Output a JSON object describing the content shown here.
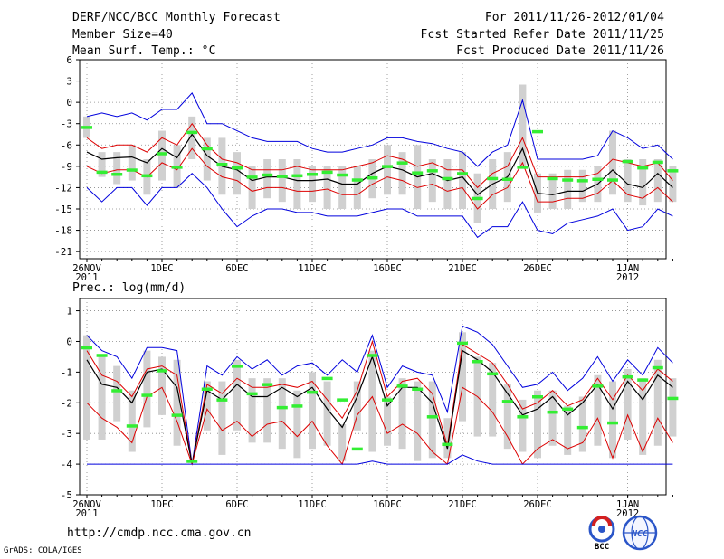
{
  "header": {
    "title": "DERF/NCC/BCC Monthly Forecast",
    "member_size": "Member Size=40",
    "variable": "Mean Surf. Temp.: °C",
    "period": "For 2011/11/26-2012/01/04",
    "fcst_started": "Fcst Started Refer Date 2011/11/25",
    "fcst_produced": "Fcst Produced Date 2011/11/26"
  },
  "footer": {
    "url": "http://cmdp.ncc.cma.gov.cn",
    "credit": "GrADS: COLA/IGES",
    "logos": [
      "BCC",
      "NCC"
    ]
  },
  "colors": {
    "max_min": "#0000dd",
    "spread": "#dd0000",
    "mean": "#000000",
    "box": "#d0d0d0",
    "observation": "#33ee33",
    "grid": "#888888"
  },
  "chart_data": [
    {
      "type": "box",
      "title": "Mean Surf. Temp.: °C",
      "xlabel": "",
      "ylabel": "",
      "ylim": [
        -22,
        6
      ],
      "yticks": [
        6,
        3,
        0,
        -3,
        -6,
        -9,
        -12,
        -15,
        -18,
        -21
      ],
      "x_tick_labels": [
        {
          "day": 0,
          "label": "26NOV",
          "year": "2011"
        },
        {
          "day": 5,
          "label": "1DEC"
        },
        {
          "day": 10,
          "label": "6DEC"
        },
        {
          "day": 15,
          "label": "11DEC"
        },
        {
          "day": 20,
          "label": "16DEC"
        },
        {
          "day": 25,
          "label": "21DEC"
        },
        {
          "day": 30,
          "label": "26DEC"
        },
        {
          "day": 36,
          "label": "1JAN",
          "year": "2012"
        }
      ],
      "days": 40,
      "series": [
        {
          "name": "Ensemble maximum",
          "values": [
            -2,
            -1.5,
            -2,
            -1.5,
            -2.5,
            -1,
            -1,
            1.3,
            -3,
            -3,
            -4,
            -5,
            -5.5,
            -5.5,
            -5.5,
            -6.5,
            -7,
            -7,
            -6.5,
            -6,
            -5,
            -5,
            -5.5,
            -5.8,
            -6.5,
            -7,
            -9,
            -7,
            -6,
            0.3,
            -8,
            -8,
            -8,
            -8,
            -7.5,
            -4,
            -5,
            -6.5,
            -6,
            -8
          ]
        },
        {
          "name": "Upper spread",
          "values": [
            -5,
            -6.5,
            -6,
            -6,
            -7,
            -5,
            -6,
            -3,
            -6,
            -8,
            -8.5,
            -9.5,
            -9.5,
            -9.5,
            -9,
            -9.5,
            -9.5,
            -9.5,
            -9,
            -8.5,
            -7.5,
            -8,
            -9,
            -8.5,
            -9.5,
            -9.5,
            -12,
            -10,
            -9,
            -5,
            -10.5,
            -10.5,
            -10.5,
            -10.5,
            -10,
            -8,
            -8.5,
            -9,
            -8.5,
            -11
          ]
        },
        {
          "name": "Ensemble mean",
          "values": [
            -7,
            -8,
            -7.8,
            -7.7,
            -8.5,
            -6.5,
            -7.8,
            -4.5,
            -7.5,
            -9,
            -9.5,
            -11,
            -10.5,
            -10.5,
            -11,
            -11,
            -10.8,
            -11.5,
            -11.5,
            -10,
            -9,
            -9.5,
            -10.5,
            -10,
            -11,
            -10.5,
            -13,
            -11.5,
            -10.5,
            -6.5,
            -12.8,
            -13,
            -12.5,
            -12.5,
            -11.5,
            -9.5,
            -11.5,
            -12,
            -10,
            -12
          ]
        },
        {
          "name": "Lower spread",
          "values": [
            -9,
            -10,
            -9.5,
            -9.5,
            -10.5,
            -8.5,
            -9.5,
            -6.5,
            -9,
            -10.5,
            -11,
            -12.5,
            -12,
            -12,
            -12.5,
            -12.5,
            -12.2,
            -13,
            -13,
            -11.5,
            -10.5,
            -11,
            -12,
            -11.5,
            -12.5,
            -12,
            -15,
            -13,
            -12,
            -8.5,
            -14,
            -14,
            -13.5,
            -13.5,
            -12.8,
            -11,
            -13,
            -13.5,
            -12,
            -14
          ]
        },
        {
          "name": "Ensemble minimum",
          "values": [
            -12,
            -14,
            -12,
            -12,
            -14.5,
            -12,
            -12,
            -10,
            -12,
            -15,
            -17.5,
            -16,
            -15,
            -15,
            -15.5,
            -15.5,
            -16,
            -16,
            -16,
            -15.5,
            -15,
            -15,
            -16,
            -16,
            -16,
            -16,
            -19,
            -17.5,
            -17.5,
            -14,
            -18,
            -18.5,
            -17,
            -16.5,
            -16,
            -15,
            -18,
            -17.5,
            -15,
            -16
          ]
        }
      ],
      "boxes": [
        {
          "day": 0,
          "low": -5,
          "high": -2
        },
        {
          "day": 1,
          "low": -10.5,
          "high": -7
        },
        {
          "day": 2,
          "low": -11.5,
          "high": -7
        },
        {
          "day": 3,
          "low": -11,
          "high": -6
        },
        {
          "day": 4,
          "low": -13,
          "high": -8
        },
        {
          "day": 5,
          "low": -11,
          "high": -4
        },
        {
          "day": 6,
          "low": -12,
          "high": -6
        },
        {
          "day": 7,
          "low": -8,
          "high": -2
        },
        {
          "day": 8,
          "low": -11,
          "high": -5
        },
        {
          "day": 9,
          "low": -13,
          "high": -5
        },
        {
          "day": 10,
          "low": -13,
          "high": -7
        },
        {
          "day": 11,
          "low": -15,
          "high": -9
        },
        {
          "day": 12,
          "low": -13.5,
          "high": -8
        },
        {
          "day": 13,
          "low": -14,
          "high": -8
        },
        {
          "day": 14,
          "low": -15,
          "high": -8
        },
        {
          "day": 15,
          "low": -14,
          "high": -9
        },
        {
          "day": 16,
          "low": -15,
          "high": -9
        },
        {
          "day": 17,
          "low": -15,
          "high": -9
        },
        {
          "day": 18,
          "low": -15,
          "high": -9
        },
        {
          "day": 19,
          "low": -13.5,
          "high": -8
        },
        {
          "day": 20,
          "low": -13,
          "high": -6
        },
        {
          "day": 21,
          "low": -13,
          "high": -7
        },
        {
          "day": 22,
          "low": -15,
          "high": -6
        },
        {
          "day": 23,
          "low": -14,
          "high": -8
        },
        {
          "day": 24,
          "low": -15,
          "high": -8
        },
        {
          "day": 25,
          "low": -15,
          "high": -7
        },
        {
          "day": 26,
          "low": -17,
          "high": -10
        },
        {
          "day": 27,
          "low": -15,
          "high": -8
        },
        {
          "day": 28,
          "low": -14,
          "high": -7
        },
        {
          "day": 29,
          "low": -9,
          "high": 2.5
        },
        {
          "day": 30,
          "low": -15.5,
          "high": -10
        },
        {
          "day": 31,
          "low": -15,
          "high": -10
        },
        {
          "day": 32,
          "low": -15,
          "high": -9.5
        },
        {
          "day": 33,
          "low": -14,
          "high": -9.5
        },
        {
          "day": 34,
          "low": -14,
          "high": -9
        },
        {
          "day": 35,
          "low": -13,
          "high": -4
        },
        {
          "day": 36,
          "low": -14,
          "high": -8
        },
        {
          "day": 37,
          "low": -14.5,
          "high": -8
        },
        {
          "day": 38,
          "low": -14,
          "high": -8
        },
        {
          "day": 39,
          "low": -14,
          "high": -9
        }
      ],
      "observation": [
        -3.5,
        -9.8,
        -10.1,
        -9.5,
        -10.3,
        -7.2,
        -9.1,
        -4.2,
        -6.5,
        -8.7,
        -9.2,
        -10.5,
        -10.2,
        -10.4,
        -10.3,
        -10.1,
        -9.8,
        -10.2,
        -10.9,
        -10.6,
        -9,
        -8.5,
        -9.9,
        -9.6,
        -10.7,
        -10,
        -13.5,
        -10.7,
        -10.8,
        -9.1,
        -4.1,
        -10.7,
        -10.9,
        -11,
        -10.8,
        -10.9,
        -8.3,
        -9.2,
        -8.4,
        -9.6
      ]
    },
    {
      "type": "box",
      "title": "Prec.: log(mm/d)",
      "xlabel": "",
      "ylabel": "",
      "ylim": [
        -5,
        1.4
      ],
      "yticks": [
        1,
        0,
        -1,
        -2,
        -3,
        -4,
        -5
      ],
      "x_tick_labels": [
        {
          "day": 0,
          "label": "26NOV",
          "year": "2011"
        },
        {
          "day": 5,
          "label": "1DEC"
        },
        {
          "day": 10,
          "label": "6DEC"
        },
        {
          "day": 15,
          "label": "11DEC"
        },
        {
          "day": 20,
          "label": "16DEC"
        },
        {
          "day": 25,
          "label": "21DEC"
        },
        {
          "day": 30,
          "label": "26DEC"
        },
        {
          "day": 36,
          "label": "1JAN",
          "year": "2012"
        }
      ],
      "days": 40,
      "series": [
        {
          "name": "Ensemble maximum",
          "values": [
            0.2,
            -0.3,
            -0.5,
            -1.2,
            -0.2,
            -0.2,
            -0.3,
            -4,
            -0.8,
            -1.1,
            -0.5,
            -0.9,
            -0.6,
            -1.1,
            -0.8,
            -0.7,
            -1.1,
            -0.6,
            -1,
            0.2,
            -1.5,
            -0.8,
            -1,
            -1.1,
            -2.3,
            0.5,
            0.3,
            -0.1,
            -0.8,
            -1.5,
            -1.4,
            -1,
            -1.6,
            -1.2,
            -0.5,
            -1.3,
            -0.6,
            -1.1,
            -0.2,
            -0.7
          ]
        },
        {
          "name": "Upper spread",
          "values": [
            -0.3,
            -1.1,
            -1.3,
            -1.8,
            -0.9,
            -0.8,
            -1.1,
            -4,
            -1.4,
            -1.7,
            -1.2,
            -1.5,
            -1.5,
            -1.4,
            -1.5,
            -1.3,
            -1.9,
            -2.5,
            -1.6,
            0,
            -1.8,
            -1.3,
            -1.2,
            -1.7,
            -3.4,
            -0.1,
            -0.4,
            -0.7,
            -1.4,
            -2.2,
            -2,
            -1.6,
            -2.1,
            -1.9,
            -1.2,
            -1.9,
            -1.1,
            -1.6,
            -0.9,
            -1.3
          ]
        },
        {
          "name": "Ensemble mean",
          "values": [
            -0.6,
            -1.4,
            -1.5,
            -2,
            -1,
            -0.9,
            -1.5,
            -4,
            -1.6,
            -1.9,
            -1.4,
            -1.8,
            -1.8,
            -1.5,
            -1.8,
            -1.5,
            -2.2,
            -2.8,
            -1.8,
            -0.5,
            -2.1,
            -1.5,
            -1.5,
            -2,
            -3.5,
            -0.3,
            -0.6,
            -1,
            -1.7,
            -2.4,
            -2.2,
            -1.8,
            -2.4,
            -2,
            -1.4,
            -2.2,
            -1.3,
            -1.9,
            -1.1,
            -1.5
          ]
        },
        {
          "name": "Lower spread",
          "values": [
            -2,
            -2.5,
            -2.8,
            -3.3,
            -1.8,
            -1.5,
            -2.6,
            -4,
            -2.2,
            -2.9,
            -2.6,
            -3.1,
            -2.7,
            -2.6,
            -3.1,
            -2.6,
            -3.4,
            -4,
            -2.4,
            -1.8,
            -3,
            -2.7,
            -3,
            -3.6,
            -4,
            -1.5,
            -1.8,
            -2.3,
            -3.1,
            -4,
            -3.5,
            -3.2,
            -3.5,
            -3.3,
            -2.5,
            -3.8,
            -2.4,
            -3.6,
            -2.5,
            -3.3
          ]
        },
        {
          "name": "Ensemble minimum",
          "values": [
            -4,
            -4,
            -4,
            -4,
            -4,
            -4,
            -4,
            -4,
            -4,
            -4,
            -4,
            -4,
            -4,
            -4,
            -4,
            -4,
            -4,
            -4,
            -4,
            -3.9,
            -4,
            -4,
            -4,
            -4,
            -4,
            -3.7,
            -3.9,
            -4,
            -4,
            -4,
            -4,
            -4,
            -4,
            -4,
            -4,
            -4,
            -4,
            -4,
            -4,
            -4
          ]
        }
      ],
      "boxes": [
        {
          "day": 0,
          "low": -3.2,
          "high": 0.2
        },
        {
          "day": 1,
          "low": -3.2,
          "high": -0.5
        },
        {
          "day": 2,
          "low": -2.6,
          "high": -0.8
        },
        {
          "day": 3,
          "low": -3.6,
          "high": -1.6
        },
        {
          "day": 4,
          "low": -2.8,
          "high": -0.3
        },
        {
          "day": 5,
          "low": -2.4,
          "high": -0.5
        },
        {
          "day": 6,
          "low": -3.4,
          "high": -0.6
        },
        {
          "day": 7,
          "low": -3.9,
          "high": -3.9
        },
        {
          "day": 8,
          "low": -2.9,
          "high": -1.3
        },
        {
          "day": 9,
          "low": -3.7,
          "high": -1.3
        },
        {
          "day": 10,
          "low": -2.9,
          "high": -0.6
        },
        {
          "day": 11,
          "low": -3.3,
          "high": -1.2
        },
        {
          "day": 12,
          "low": -3.3,
          "high": -1.2
        },
        {
          "day": 13,
          "low": -3.5,
          "high": -1.2
        },
        {
          "day": 14,
          "low": -3.8,
          "high": -1.6
        },
        {
          "day": 15,
          "low": -3.5,
          "high": -1
        },
        {
          "day": 16,
          "low": -3.4,
          "high": -1.3
        },
        {
          "day": 17,
          "low": -3.9,
          "high": -2.7
        },
        {
          "day": 18,
          "low": -2.9,
          "high": -1.3
        },
        {
          "day": 19,
          "low": -3.6,
          "high": -0.3
        },
        {
          "day": 20,
          "low": -3.4,
          "high": -1.8
        },
        {
          "day": 21,
          "low": -3.5,
          "high": -1.2
        },
        {
          "day": 22,
          "low": -3.9,
          "high": -1.3
        },
        {
          "day": 23,
          "low": -3.8,
          "high": -1.3
        },
        {
          "day": 24,
          "low": -3.8,
          "high": -2.5
        },
        {
          "day": 25,
          "low": -2.6,
          "high": 0.3
        },
        {
          "day": 26,
          "low": -3.1,
          "high": -0.5
        },
        {
          "day": 27,
          "low": -3.1,
          "high": -0.7
        },
        {
          "day": 28,
          "low": -3.5,
          "high": -1.4
        },
        {
          "day": 29,
          "low": -3.6,
          "high": -1.9
        },
        {
          "day": 30,
          "low": -3.8,
          "high": -1.6
        },
        {
          "day": 31,
          "low": -3.4,
          "high": -1.6
        },
        {
          "day": 32,
          "low": -3.7,
          "high": -2.1
        },
        {
          "day": 33,
          "low": -3.6,
          "high": -1.8
        },
        {
          "day": 34,
          "low": -3.4,
          "high": -1.1
        },
        {
          "day": 35,
          "low": -3.8,
          "high": -1.3
        },
        {
          "day": 36,
          "low": -3.2,
          "high": -0.9
        },
        {
          "day": 37,
          "low": -3.7,
          "high": -1.2
        },
        {
          "day": 38,
          "low": -3.4,
          "high": -0.6
        },
        {
          "day": 39,
          "low": -3.1,
          "high": -1.2
        }
      ],
      "observation": [
        -0.2,
        -0.45,
        -1.6,
        -2.75,
        -1.75,
        -0.95,
        -2.4,
        -3.9,
        -1.55,
        -1.9,
        -0.8,
        -1.7,
        -1.4,
        -2.15,
        -2.1,
        -1.65,
        -1.2,
        -1.9,
        -3.5,
        -0.45,
        -1.9,
        -1.45,
        -1.55,
        -2.45,
        -3.35,
        -0.05,
        -0.65,
        -1.05,
        -1.95,
        -2.45,
        -1.8,
        -2.3,
        -2.2,
        -2.8,
        -1.45,
        -2.65,
        -1.15,
        -1.25,
        -0.85,
        -1.85
      ]
    }
  ]
}
